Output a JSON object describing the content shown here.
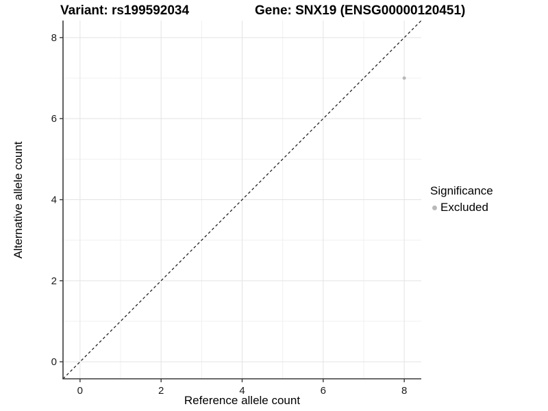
{
  "chart_data": {
    "type": "scatter",
    "title_left": "Variant: rs199592034",
    "title_right": "Gene: SNX19 (ENSG00000120451)",
    "xlabel": "Reference allele count",
    "ylabel": "Alternative allele count",
    "xlim": [
      -0.42,
      8.42
    ],
    "ylim": [
      -0.42,
      8.42
    ],
    "x_ticks": [
      0,
      2,
      4,
      6,
      8
    ],
    "y_ticks": [
      0,
      2,
      4,
      6,
      8
    ],
    "x_minor_gridlines": [
      1,
      3,
      5,
      7
    ],
    "y_minor_gridlines": [
      1,
      3,
      5,
      7
    ],
    "grid": true,
    "points": [
      {
        "x": 8,
        "y": 7,
        "significance": "Excluded"
      }
    ],
    "identity_line": {
      "slope": 1,
      "intercept": 0,
      "style": "dashed"
    },
    "legend": {
      "title": "Significance",
      "position": "right",
      "entries": [
        {
          "label": "Excluded",
          "color": "#b9b9b9"
        }
      ]
    },
    "colors": {
      "background": "#ffffff",
      "axis_line": "#383838",
      "grid_major": "#e3e3e3",
      "grid_minor": "#f0f0f0",
      "tick_label": "#1a1a1a",
      "identity_line": "#111111",
      "point": "#b9b9b9"
    }
  }
}
